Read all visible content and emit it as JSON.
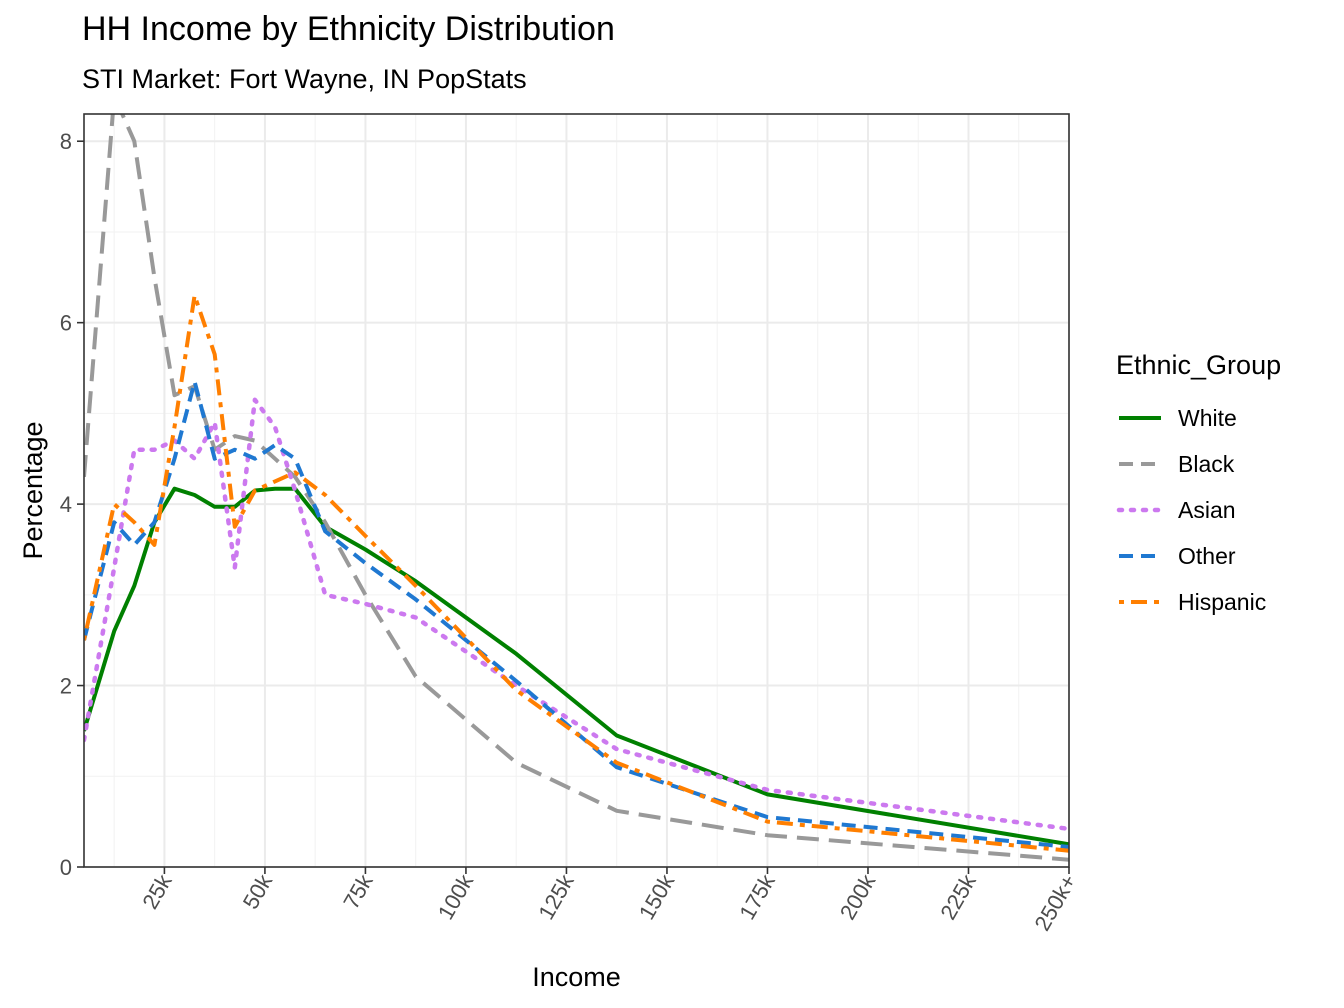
{
  "chart_data": {
    "type": "line",
    "title": "HH Income by Ethnicity Distribution",
    "subtitle": "STI Market: Fort Wayne, IN PopStats",
    "xlabel": "Income",
    "ylabel": "Percentage",
    "xlim": [
      5,
      250
    ],
    "ylim": [
      0,
      8.3
    ],
    "x_ticks": [
      {
        "value": 25,
        "label": "25k"
      },
      {
        "value": 50,
        "label": "50k"
      },
      {
        "value": 75,
        "label": "75k"
      },
      {
        "value": 100,
        "label": "100k"
      },
      {
        "value": 125,
        "label": "125k"
      },
      {
        "value": 150,
        "label": "150k"
      },
      {
        "value": 175,
        "label": "175k"
      },
      {
        "value": 200,
        "label": "200k"
      },
      {
        "value": 225,
        "label": "225k"
      },
      {
        "value": 250,
        "label": "250k+"
      }
    ],
    "y_ticks": [
      0,
      2,
      4,
      6,
      8
    ],
    "grid": true,
    "legend_title": "Ethnic_Group",
    "legend_position": "right",
    "x": [
      5,
      12.5,
      17.5,
      22.5,
      27.5,
      32.5,
      37.5,
      42.5,
      47.5,
      52.5,
      57.5,
      65,
      75,
      87.5,
      112.5,
      137.5,
      175,
      250
    ],
    "series": [
      {
        "name": "White",
        "color": "#008000",
        "dash": "solid",
        "values": [
          1.5,
          2.6,
          3.1,
          3.8,
          4.17,
          4.1,
          3.97,
          3.97,
          4.15,
          4.17,
          4.17,
          3.75,
          3.5,
          3.15,
          2.35,
          1.45,
          0.8,
          0.25
        ]
      },
      {
        "name": "Black",
        "color": "#999999",
        "dash": "longdash",
        "values": [
          4.3,
          8.5,
          8.0,
          6.5,
          5.2,
          5.3,
          4.6,
          4.75,
          4.7,
          4.5,
          4.3,
          3.8,
          3.0,
          2.1,
          1.15,
          0.62,
          0.35,
          0.08
        ]
      },
      {
        "name": "Asian",
        "color": "#cc79ef",
        "dash": "dotted",
        "values": [
          1.4,
          3.3,
          4.6,
          4.6,
          4.7,
          4.5,
          4.9,
          3.3,
          5.15,
          4.85,
          4.15,
          3.0,
          2.9,
          2.75,
          2.0,
          1.3,
          0.85,
          0.42
        ]
      },
      {
        "name": "Other",
        "color": "#1f78d1",
        "dash": "dashed",
        "values": [
          2.5,
          3.8,
          3.55,
          3.8,
          4.5,
          5.35,
          4.5,
          4.6,
          4.5,
          4.65,
          4.5,
          3.7,
          3.35,
          2.95,
          2.05,
          1.1,
          0.55,
          0.22
        ]
      },
      {
        "name": "Hispanic",
        "color": "#ff7f00",
        "dash": "dotdash",
        "values": [
          2.5,
          4.0,
          3.8,
          3.55,
          4.85,
          6.3,
          5.65,
          3.75,
          4.15,
          4.25,
          4.35,
          4.1,
          3.65,
          3.1,
          1.95,
          1.15,
          0.5,
          0.18
        ]
      }
    ]
  }
}
